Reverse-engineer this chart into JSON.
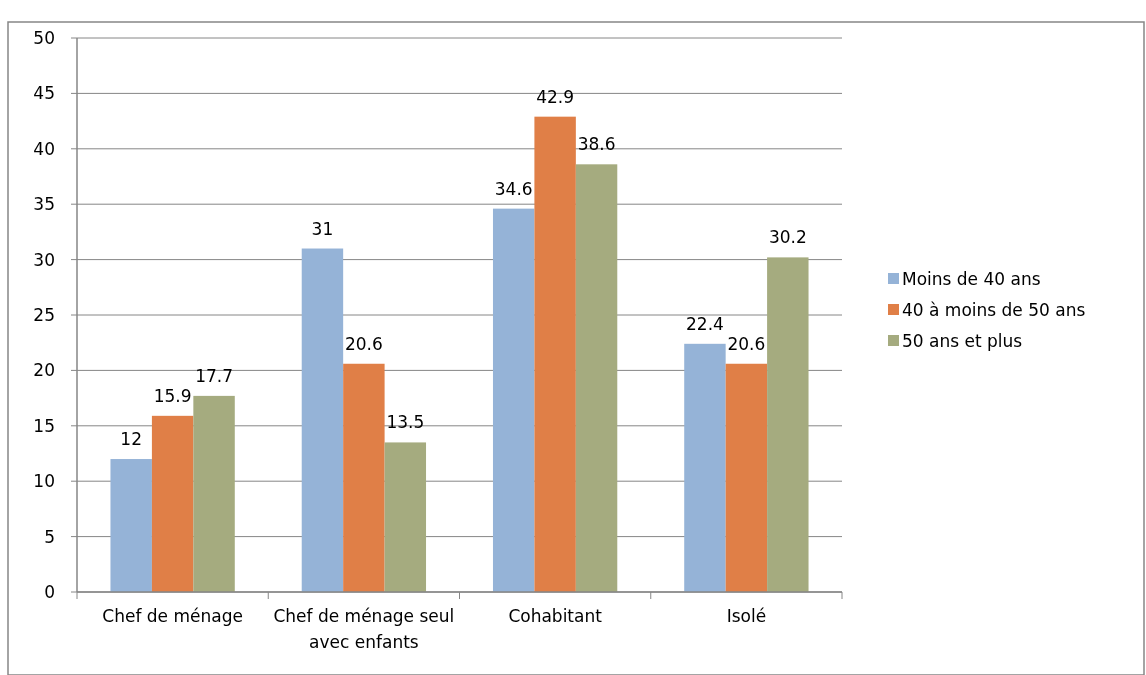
{
  "chart_data": {
    "type": "bar",
    "categories": [
      "Chef de ménage",
      "Chef de ménage seul avec enfants",
      "Cohabitant",
      "Isolé"
    ],
    "series": [
      {
        "name": "Moins de 40 ans",
        "color": "#95b3d7",
        "values": [
          12,
          31,
          34.6,
          22.4
        ]
      },
      {
        "name": "40 à moins de 50 ans",
        "color": "#e07f47",
        "values": [
          15.9,
          20.6,
          42.9,
          20.6
        ]
      },
      {
        "name": "50 ans et plus",
        "color": "#a5ab7f",
        "values": [
          17.7,
          13.5,
          38.6,
          30.2
        ]
      }
    ],
    "ylim": [
      0,
      50
    ],
    "yticks": [
      0,
      5,
      10,
      15,
      20,
      25,
      30,
      35,
      40,
      45,
      50
    ],
    "grid": "y",
    "legend": "right",
    "data_labels": true
  }
}
